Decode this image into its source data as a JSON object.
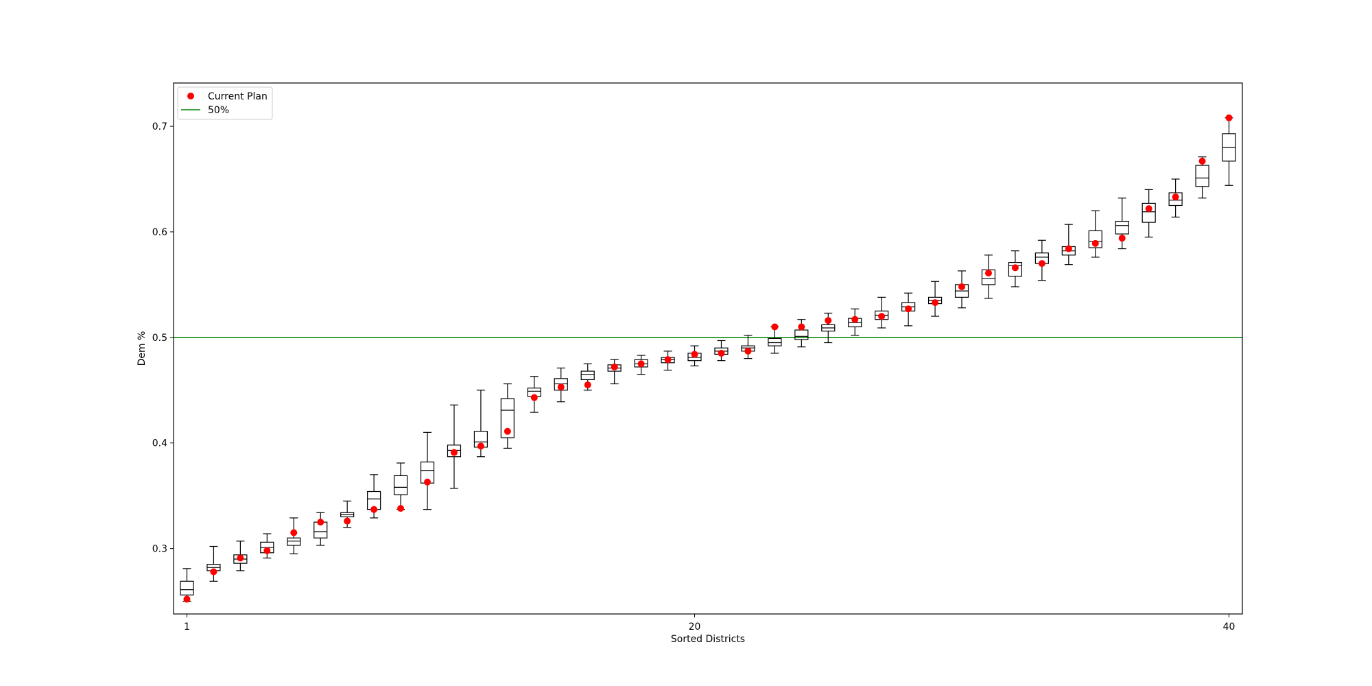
{
  "chart_data": {
    "type": "box",
    "title": "",
    "xlabel": "Sorted Districts",
    "ylabel": "Dem %",
    "xlim": [
      0.5,
      40.5
    ],
    "ylim": [
      0.238,
      0.741
    ],
    "x_ticks": [
      1,
      20,
      40
    ],
    "y_ticks": [
      0.3,
      0.4,
      0.5,
      0.6,
      0.7
    ],
    "y_tick_labels": [
      "0.3",
      "0.4",
      "0.5",
      "0.6",
      "0.7"
    ],
    "grid": false,
    "legend": {
      "position": "upper-left",
      "entries": [
        {
          "label": "Current Plan",
          "marker": "dot",
          "color": "#ff0000"
        },
        {
          "label": "50%",
          "marker": "line",
          "color": "#008000"
        }
      ]
    },
    "reference_line": {
      "y": 0.5,
      "color": "#008000",
      "label": "50%"
    },
    "current_plan": {
      "name": "Current Plan",
      "color": "#ff0000",
      "values": [
        0.252,
        0.278,
        0.291,
        0.298,
        0.315,
        0.325,
        0.326,
        0.337,
        0.338,
        0.363,
        0.391,
        0.397,
        0.411,
        0.443,
        0.453,
        0.455,
        0.472,
        0.475,
        0.479,
        0.484,
        0.485,
        0.487,
        0.51,
        0.51,
        0.516,
        0.517,
        0.52,
        0.527,
        0.533,
        0.548,
        0.561,
        0.566,
        0.57,
        0.584,
        0.589,
        0.594,
        0.622,
        0.633,
        0.667,
        0.708
      ]
    },
    "boxes": [
      {
        "whislo": 0.25,
        "q1": 0.256,
        "med": 0.261,
        "q3": 0.269,
        "whishi": 0.281
      },
      {
        "whislo": 0.269,
        "q1": 0.279,
        "med": 0.282,
        "q3": 0.285,
        "whishi": 0.302
      },
      {
        "whislo": 0.279,
        "q1": 0.286,
        "med": 0.29,
        "q3": 0.294,
        "whishi": 0.307
      },
      {
        "whislo": 0.291,
        "q1": 0.296,
        "med": 0.301,
        "q3": 0.306,
        "whishi": 0.314
      },
      {
        "whislo": 0.295,
        "q1": 0.303,
        "med": 0.307,
        "q3": 0.31,
        "whishi": 0.329
      },
      {
        "whislo": 0.303,
        "q1": 0.31,
        "med": 0.316,
        "q3": 0.325,
        "whishi": 0.334
      },
      {
        "whislo": 0.32,
        "q1": 0.33,
        "med": 0.332,
        "q3": 0.334,
        "whishi": 0.345
      },
      {
        "whislo": 0.329,
        "q1": 0.337,
        "med": 0.347,
        "q3": 0.354,
        "whishi": 0.37
      },
      {
        "whislo": 0.337,
        "q1": 0.351,
        "med": 0.358,
        "q3": 0.369,
        "whishi": 0.381
      },
      {
        "whislo": 0.337,
        "q1": 0.362,
        "med": 0.374,
        "q3": 0.382,
        "whishi": 0.41
      },
      {
        "whislo": 0.357,
        "q1": 0.387,
        "med": 0.393,
        "q3": 0.398,
        "whishi": 0.436
      },
      {
        "whislo": 0.387,
        "q1": 0.396,
        "med": 0.401,
        "q3": 0.411,
        "whishi": 0.45
      },
      {
        "whislo": 0.395,
        "q1": 0.405,
        "med": 0.431,
        "q3": 0.442,
        "whishi": 0.456
      },
      {
        "whislo": 0.429,
        "q1": 0.444,
        "med": 0.449,
        "q3": 0.452,
        "whishi": 0.463
      },
      {
        "whislo": 0.439,
        "q1": 0.45,
        "med": 0.456,
        "q3": 0.461,
        "whishi": 0.471
      },
      {
        "whislo": 0.45,
        "q1": 0.46,
        "med": 0.465,
        "q3": 0.468,
        "whishi": 0.475
      },
      {
        "whislo": 0.456,
        "q1": 0.468,
        "med": 0.471,
        "q3": 0.474,
        "whishi": 0.479
      },
      {
        "whislo": 0.465,
        "q1": 0.472,
        "med": 0.475,
        "q3": 0.479,
        "whishi": 0.483
      },
      {
        "whislo": 0.469,
        "q1": 0.476,
        "med": 0.479,
        "q3": 0.481,
        "whishi": 0.487
      },
      {
        "whislo": 0.473,
        "q1": 0.478,
        "med": 0.481,
        "q3": 0.485,
        "whishi": 0.492
      },
      {
        "whislo": 0.478,
        "q1": 0.484,
        "med": 0.487,
        "q3": 0.49,
        "whishi": 0.497
      },
      {
        "whislo": 0.48,
        "q1": 0.487,
        "med": 0.49,
        "q3": 0.492,
        "whishi": 0.502
      },
      {
        "whislo": 0.485,
        "q1": 0.492,
        "med": 0.495,
        "q3": 0.499,
        "whishi": 0.51
      },
      {
        "whislo": 0.491,
        "q1": 0.498,
        "med": 0.501,
        "q3": 0.507,
        "whishi": 0.517
      },
      {
        "whislo": 0.495,
        "q1": 0.506,
        "med": 0.509,
        "q3": 0.512,
        "whishi": 0.523
      },
      {
        "whislo": 0.502,
        "q1": 0.51,
        "med": 0.514,
        "q3": 0.518,
        "whishi": 0.527
      },
      {
        "whislo": 0.509,
        "q1": 0.517,
        "med": 0.521,
        "q3": 0.525,
        "whishi": 0.538
      },
      {
        "whislo": 0.511,
        "q1": 0.525,
        "med": 0.529,
        "q3": 0.533,
        "whishi": 0.542
      },
      {
        "whislo": 0.52,
        "q1": 0.532,
        "med": 0.535,
        "q3": 0.538,
        "whishi": 0.553
      },
      {
        "whislo": 0.528,
        "q1": 0.538,
        "med": 0.544,
        "q3": 0.55,
        "whishi": 0.563
      },
      {
        "whislo": 0.537,
        "q1": 0.55,
        "med": 0.556,
        "q3": 0.564,
        "whishi": 0.578
      },
      {
        "whislo": 0.548,
        "q1": 0.558,
        "med": 0.568,
        "q3": 0.571,
        "whishi": 0.582
      },
      {
        "whislo": 0.554,
        "q1": 0.57,
        "med": 0.576,
        "q3": 0.58,
        "whishi": 0.592
      },
      {
        "whislo": 0.569,
        "q1": 0.578,
        "med": 0.582,
        "q3": 0.586,
        "whishi": 0.607
      },
      {
        "whislo": 0.576,
        "q1": 0.585,
        "med": 0.591,
        "q3": 0.601,
        "whishi": 0.62
      },
      {
        "whislo": 0.584,
        "q1": 0.598,
        "med": 0.606,
        "q3": 0.61,
        "whishi": 0.632
      },
      {
        "whislo": 0.595,
        "q1": 0.609,
        "med": 0.619,
        "q3": 0.627,
        "whishi": 0.64
      },
      {
        "whislo": 0.614,
        "q1": 0.625,
        "med": 0.63,
        "q3": 0.637,
        "whishi": 0.65
      },
      {
        "whislo": 0.632,
        "q1": 0.643,
        "med": 0.651,
        "q3": 0.663,
        "whishi": 0.671
      },
      {
        "whislo": 0.644,
        "q1": 0.667,
        "med": 0.68,
        "q3": 0.693,
        "whishi": 0.708
      }
    ]
  }
}
